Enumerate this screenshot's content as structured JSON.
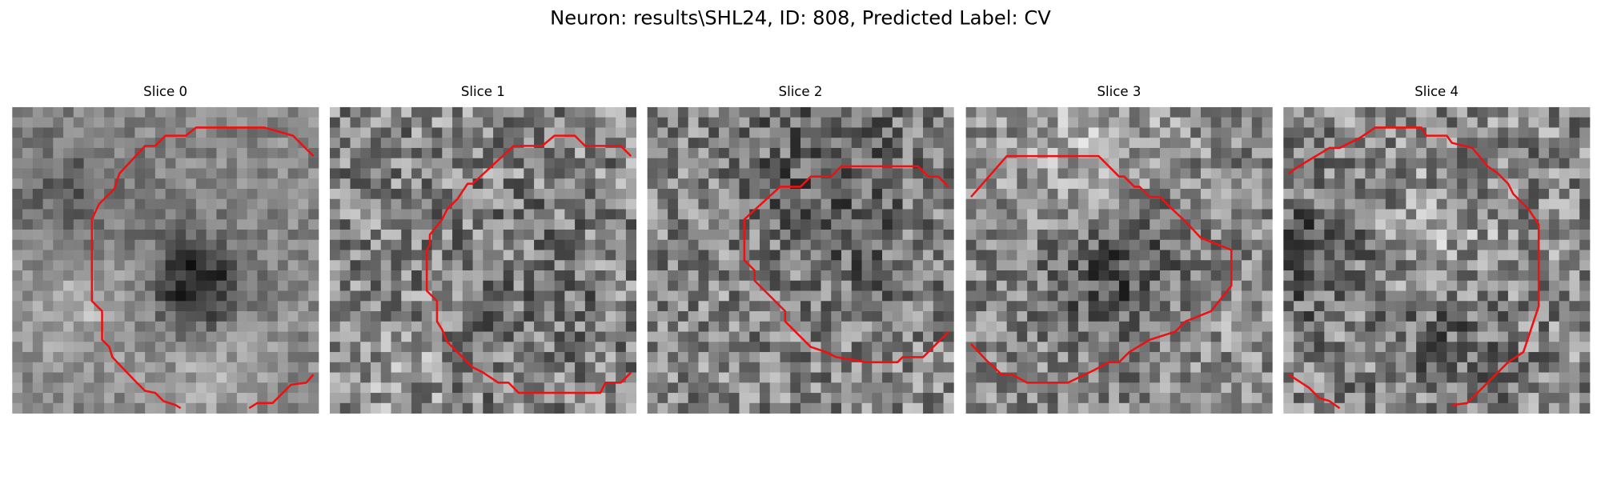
{
  "title": "Neuron: results\\SHL24, ID: 808, Predicted Label: CV",
  "panels": [
    {
      "title": "Slice 0"
    },
    {
      "title": "Slice 1"
    },
    {
      "title": "Slice 2"
    },
    {
      "title": "Slice 3"
    },
    {
      "title": "Slice 4"
    }
  ]
}
